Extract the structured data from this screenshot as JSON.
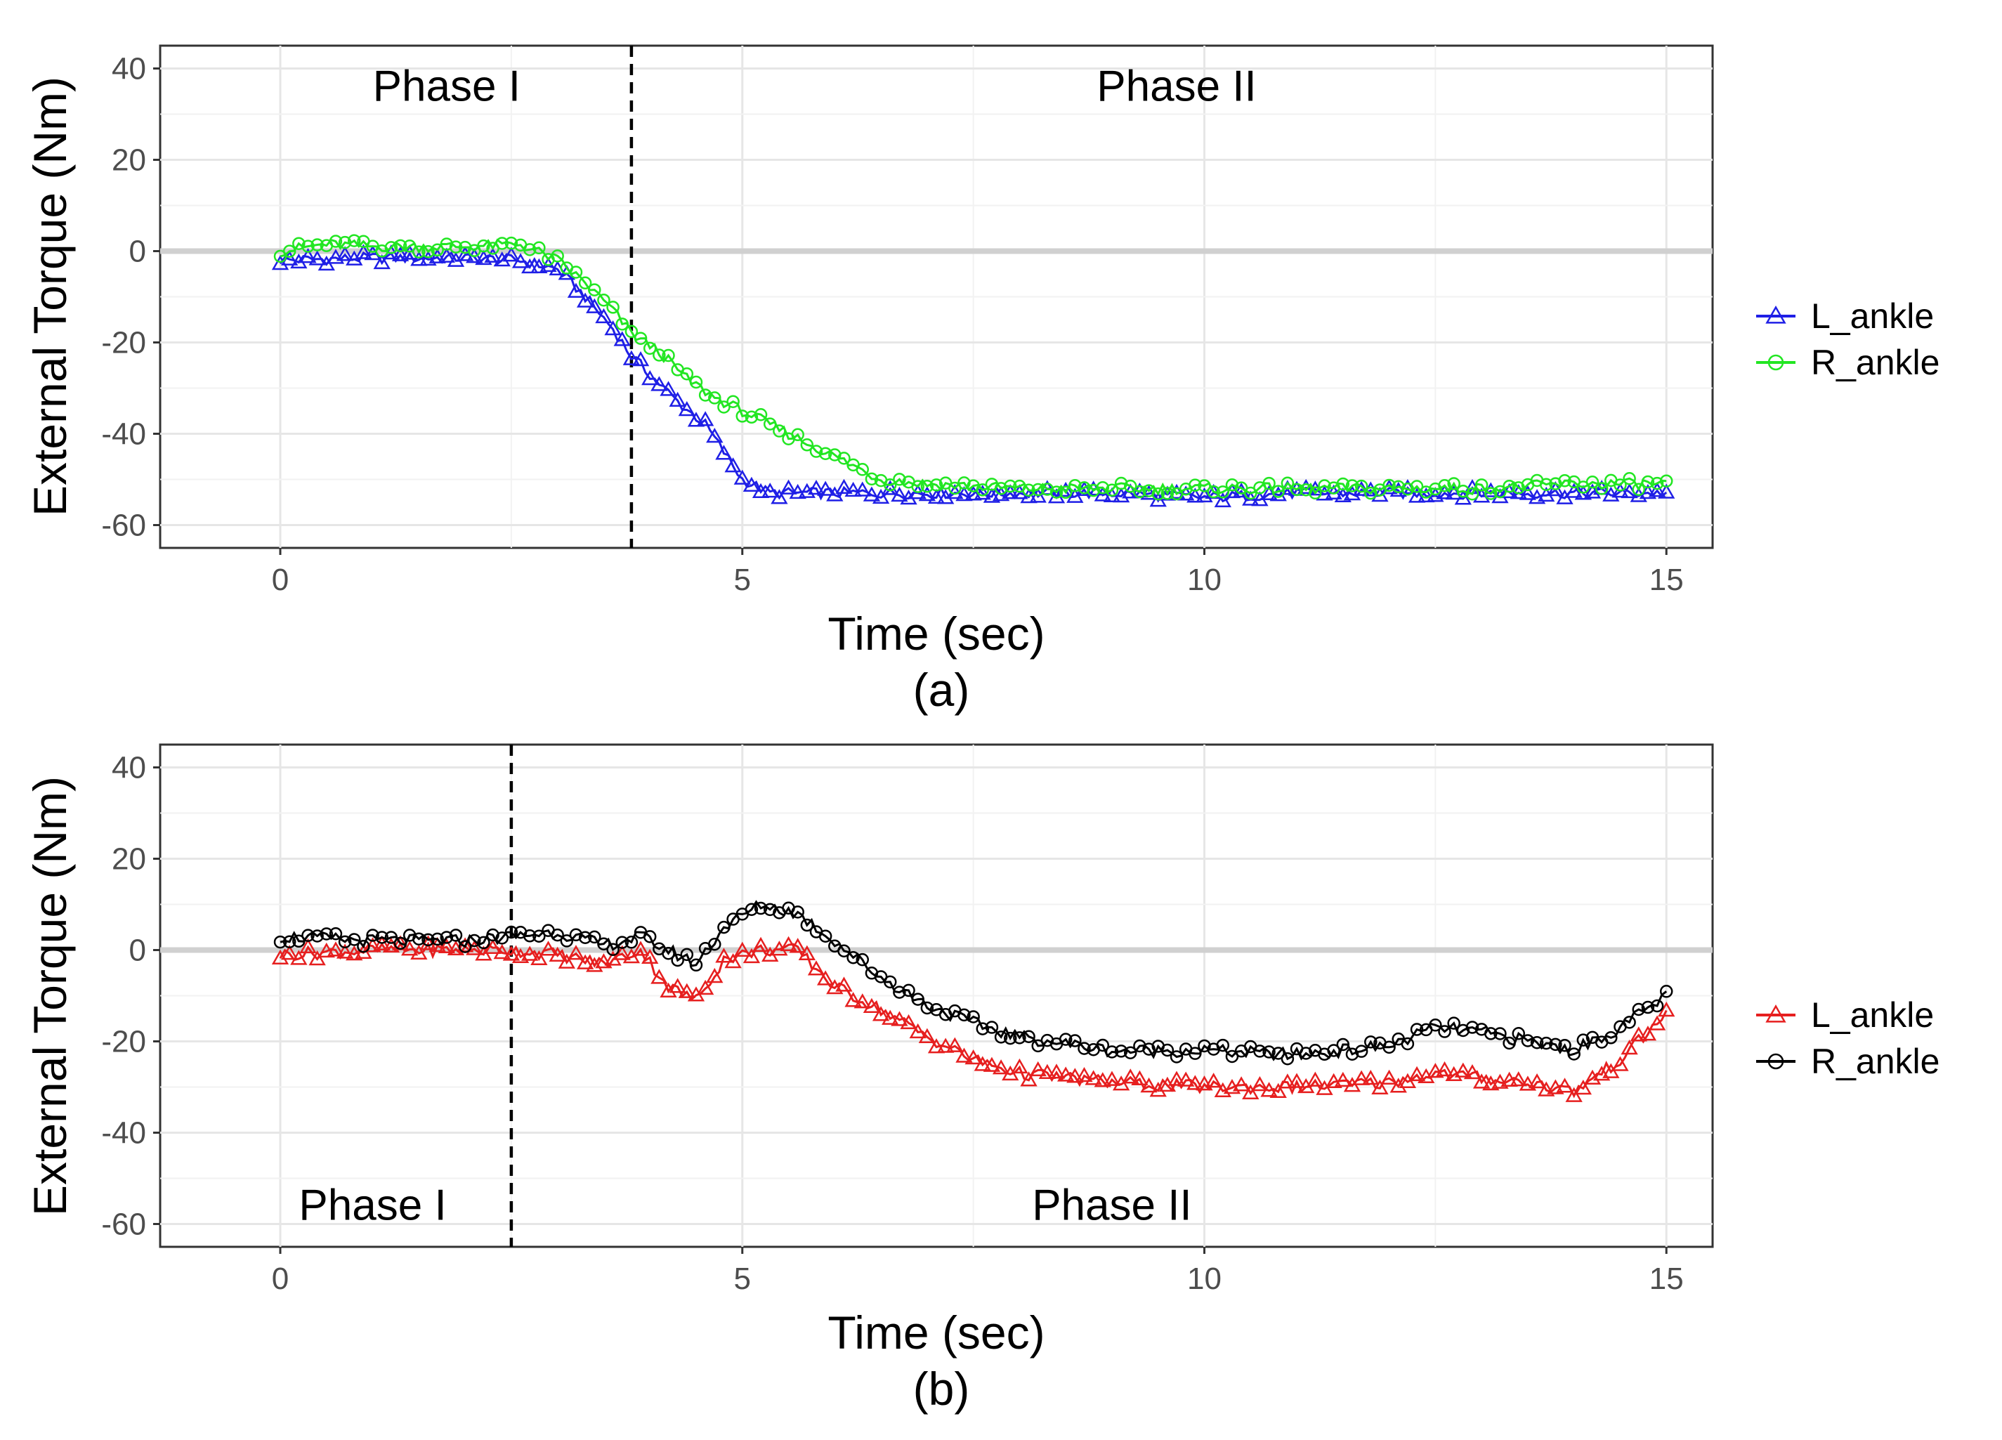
{
  "chart_data": [
    {
      "type": "line",
      "caption": "(a)",
      "xlabel": "Time (sec)",
      "ylabel": "External Torque (Nm)",
      "xlim": [
        -1.3,
        15.5
      ],
      "ylim": [
        -65,
        45
      ],
      "x_ticks": [
        "0",
        "5",
        "10",
        "15"
      ],
      "y_ticks": [
        "40",
        "20",
        "0",
        "-20",
        "-40",
        "-60"
      ],
      "phase_divider_x": 3.8,
      "phase_labels": [
        {
          "text": "Phase I",
          "x": 1.8,
          "y": 36
        },
        {
          "text": "Phase II",
          "x": 9.7,
          "y": 36
        }
      ],
      "zero_line": 0,
      "series": [
        {
          "name": "L_ankle",
          "color": "#1f1fe6",
          "marker": "triangle",
          "x": [
            0,
            1,
            2,
            2.6,
            3.0,
            3.3,
            3.6,
            3.8,
            4.0,
            4.3,
            4.6,
            4.8,
            5.0,
            5.3,
            5.6,
            6,
            7,
            8,
            9,
            10,
            11,
            12,
            13,
            14,
            15
          ],
          "y": [
            -2,
            -1.5,
            -1.5,
            -2,
            -4,
            -10,
            -17,
            -23,
            -27,
            -33,
            -38,
            -44,
            -50,
            -53,
            -53,
            -53,
            -53,
            -53,
            -53,
            -54,
            -53,
            -53,
            -53,
            -53,
            -53
          ]
        },
        {
          "name": "R_ankle",
          "color": "#22e622",
          "marker": "circle",
          "x": [
            0,
            0.5,
            1,
            2,
            2.6,
            3.0,
            3.3,
            3.6,
            3.8,
            4.1,
            4.4,
            4.7,
            5.0,
            5.5,
            6.0,
            6.5,
            7,
            8,
            9,
            10,
            11,
            12,
            13,
            14,
            15
          ],
          "y": [
            0,
            1.5,
            1,
            1,
            1.5,
            -2,
            -7,
            -13,
            -18,
            -22,
            -28,
            -32,
            -35,
            -40,
            -45,
            -50,
            -51,
            -52,
            -52,
            -52,
            -52,
            -52,
            -52,
            -51,
            -51
          ]
        }
      ],
      "legend": [
        "L_ankle",
        "R_ankle"
      ]
    },
    {
      "type": "line",
      "caption": "(b)",
      "xlabel": "Time (sec)",
      "ylabel": "External Torque (Nm)",
      "xlim": [
        -1.3,
        15.5
      ],
      "ylim": [
        -65,
        45
      ],
      "x_ticks": [
        "0",
        "5",
        "10",
        "15"
      ],
      "y_ticks": [
        "40",
        "20",
        "0",
        "-20",
        "-40",
        "-60"
      ],
      "phase_divider_x": 2.5,
      "phase_labels": [
        {
          "text": "Phase I",
          "x": 1.0,
          "y": -56
        },
        {
          "text": "Phase II",
          "x": 9.0,
          "y": -56
        }
      ],
      "zero_line": 0,
      "series": [
        {
          "name": "L_ankle",
          "color": "#e61f1f",
          "marker": "triangle",
          "x": [
            0,
            1,
            2,
            2.5,
            3.0,
            3.5,
            3.9,
            4.2,
            4.5,
            4.8,
            5.2,
            5.6,
            6.0,
            6.5,
            7,
            7.5,
            8,
            9,
            10,
            11,
            12,
            12.5,
            13,
            13.5,
            14,
            14.5,
            15
          ],
          "y": [
            -1,
            0,
            0,
            0,
            -1,
            -3,
            0,
            -8,
            -11,
            -2,
            0,
            0,
            -8,
            -13,
            -19,
            -24,
            -27,
            -29,
            -30,
            -30,
            -29,
            -27,
            -28,
            -29,
            -31,
            -24,
            -14
          ]
        },
        {
          "name": "R_ankle",
          "color": "#000000",
          "marker": "circle",
          "x": [
            0,
            1,
            2,
            2.5,
            3.0,
            3.5,
            3.9,
            4.2,
            4.5,
            4.8,
            5.2,
            5.6,
            6.0,
            6.5,
            7,
            7.5,
            8,
            9,
            10,
            11,
            12,
            12.5,
            13,
            13.5,
            14,
            14.5,
            15
          ],
          "y": [
            3,
            2,
            2,
            3,
            4,
            1,
            3,
            0,
            -3,
            5,
            10,
            8,
            2,
            -6,
            -12,
            -16,
            -19,
            -22,
            -22,
            -23,
            -21,
            -17,
            -18,
            -20,
            -22,
            -17,
            -10
          ]
        }
      ],
      "legend": [
        "L_ankle",
        "R_ankle"
      ]
    }
  ]
}
